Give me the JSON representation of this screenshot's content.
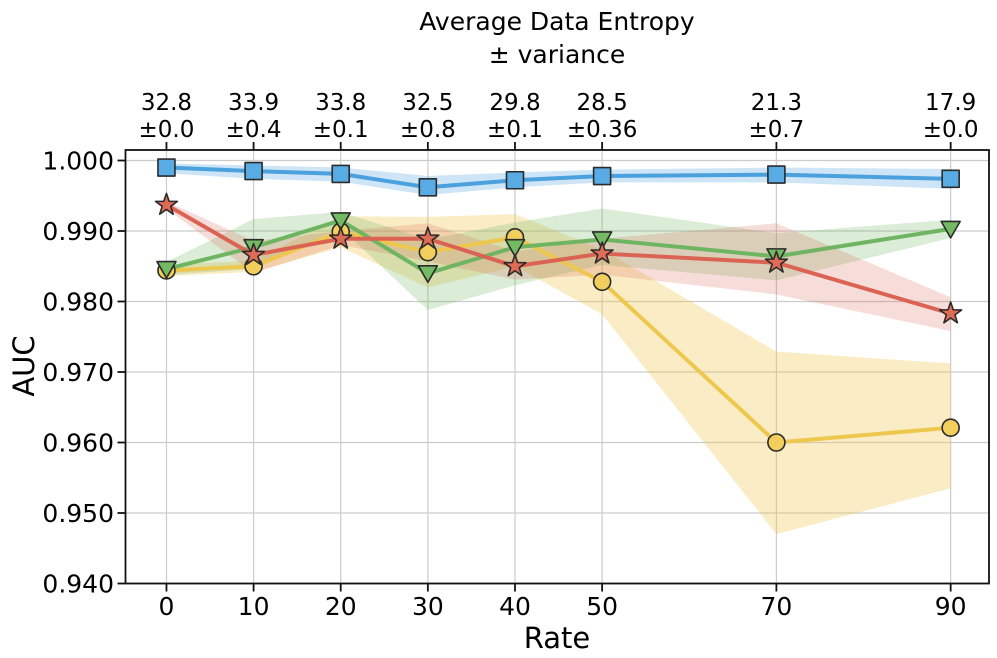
{
  "chart_data": {
    "type": "line",
    "title": "Average Data Entropy ± variance",
    "top_axis_title_line1": "Average Data Entropy",
    "top_axis_title_line2": "± variance",
    "xlabel": "Rate",
    "ylabel": "AUC",
    "x": [
      0,
      10,
      20,
      30,
      40,
      50,
      70,
      90
    ],
    "x_tick_labels": [
      "0",
      "10",
      "20",
      "30",
      "40",
      "50",
      "70",
      "90"
    ],
    "y_ticks": [
      1.0,
      0.99,
      0.98,
      0.97,
      0.96,
      0.95,
      0.94
    ],
    "y_tick_labels": [
      "1.000",
      "0.990",
      "0.980",
      "0.970",
      "0.960",
      "0.950",
      "0.940"
    ],
    "xlim": [
      -4.7,
      94.4
    ],
    "ylim": [
      0.94,
      1.00149
    ],
    "grid": true,
    "legend": "none",
    "top_axis": {
      "entropy_values": [
        "32.8",
        "33.9",
        "33.8",
        "32.5",
        "29.8",
        "28.5",
        "21.3",
        "17.9"
      ],
      "entropy_variances": [
        "±0.0",
        "±0.4",
        "±0.1",
        "±0.8",
        "±0.1",
        "±0.36",
        "±0.7",
        "±0.0"
      ]
    },
    "series": [
      {
        "name": "yellow-circles",
        "marker": "circle",
        "line_color": "#EEC84E",
        "marker_fill": "#F2CF5D",
        "band_alpha": 0.32,
        "values": [
          0.9844,
          0.985,
          0.9899,
          0.987,
          0.9891,
          0.9828,
          0.96,
          0.9621
        ],
        "band_lower": [
          0.9836,
          0.9842,
          0.9877,
          0.982,
          0.985,
          0.9782,
          0.947,
          0.9535
        ],
        "band_upper": [
          0.9852,
          0.9858,
          0.9921,
          0.992,
          0.9924,
          0.9874,
          0.9729,
          0.9712
        ]
      },
      {
        "name": "green-triangles-down",
        "marker": "triangle-down",
        "line_color": "#6FB561",
        "marker_fill": "#74BA63",
        "band_alpha": 0.25,
        "values": [
          0.9846,
          0.9877,
          0.9915,
          0.984,
          0.9877,
          0.9888,
          0.9864,
          0.9903
        ],
        "band_lower": [
          0.9838,
          0.9846,
          0.9904,
          0.9788,
          0.9823,
          0.9852,
          0.983,
          0.989
        ],
        "band_upper": [
          0.9856,
          0.9917,
          0.9927,
          0.9888,
          0.9912,
          0.9932,
          0.9897,
          0.9916
        ]
      },
      {
        "name": "red-stars",
        "marker": "star",
        "line_color": "#DB6353",
        "marker_fill": "#E16C55",
        "band_alpha": 0.22,
        "values": [
          0.9937,
          0.9866,
          0.9889,
          0.9889,
          0.985,
          0.9868,
          0.9855,
          0.9783
        ],
        "band_lower": [
          0.9932,
          0.984,
          0.988,
          0.9857,
          0.9831,
          0.9838,
          0.981,
          0.9758
        ],
        "band_upper": [
          0.9942,
          0.9886,
          0.99,
          0.9911,
          0.9871,
          0.9889,
          0.9911,
          0.9806
        ]
      },
      {
        "name": "blue-squares",
        "marker": "square",
        "line_color": "#4BA0DE",
        "marker_fill": "#59ACE3",
        "band_alpha": 0.28,
        "values": [
          0.999,
          0.9985,
          0.9981,
          0.9962,
          0.9972,
          0.9978,
          0.998,
          0.9974
        ],
        "band_lower": [
          0.9982,
          0.9974,
          0.997,
          0.9951,
          0.9962,
          0.9969,
          0.9969,
          0.996
        ],
        "band_upper": [
          0.9996,
          0.9993,
          0.999,
          0.9978,
          0.9983,
          0.9987,
          0.999,
          0.9988
        ]
      }
    ],
    "style": {
      "grid_color": "#CCCCCC",
      "spine_color": "#111111",
      "marker_edge": "#2B2B2B",
      "text_color": "#000000"
    }
  }
}
